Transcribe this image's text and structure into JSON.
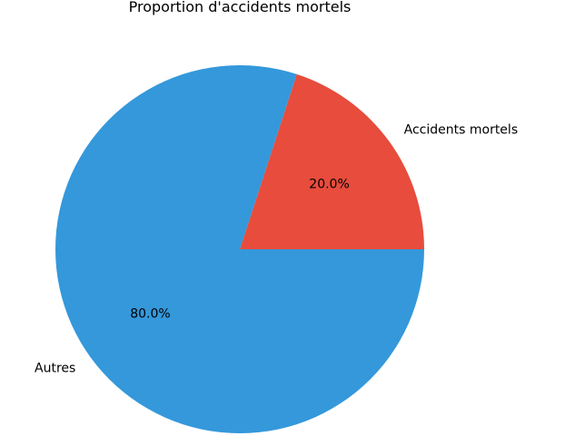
{
  "chart_data": {
    "type": "pie",
    "title": "Proportion d'accidents mortels",
    "slices": [
      {
        "label": "Accidents mortels",
        "value": 20.0,
        "display": "20.0%",
        "color": "#e74c3c"
      },
      {
        "label": "Autres",
        "value": 80.0,
        "display": "80.0%",
        "color": "#3498db"
      }
    ],
    "start_angle": 0,
    "direction": "counterclockwise",
    "legend": "none"
  }
}
